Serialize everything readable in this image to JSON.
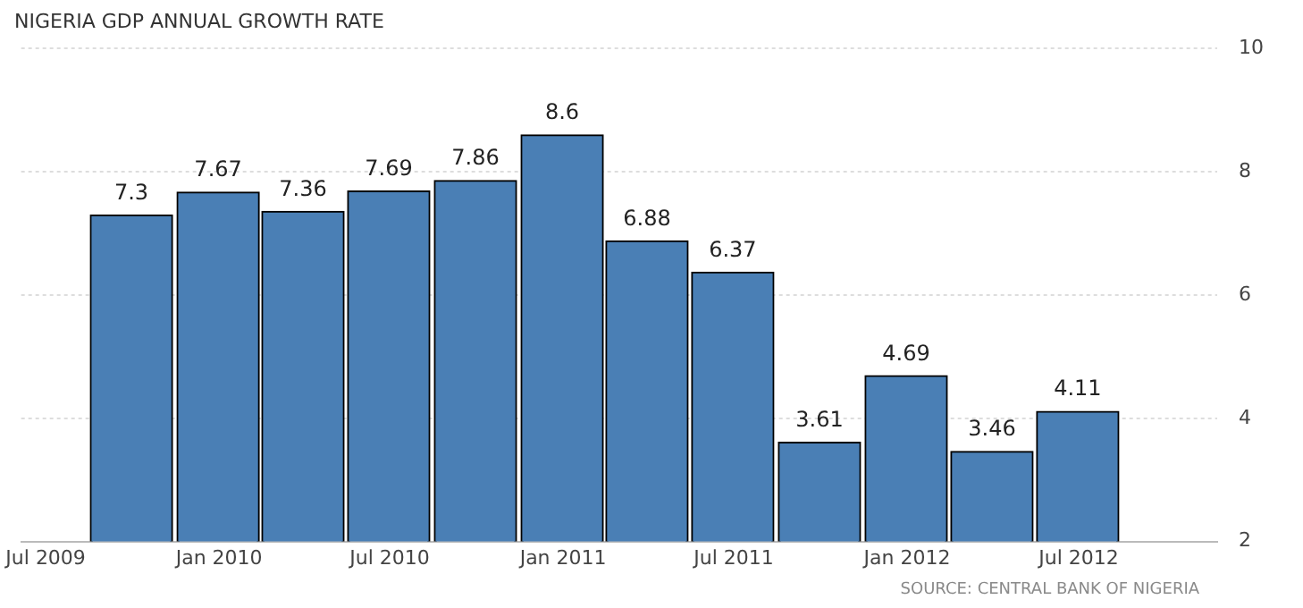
{
  "chart_data": {
    "type": "bar",
    "title": "NIGERIA GDP ANNUAL GROWTH RATE",
    "x": [
      "2009-09-30",
      "2009-12-31",
      "2010-03-31",
      "2010-06-30",
      "2010-09-30",
      "2010-12-31",
      "2011-03-31",
      "2011-06-30",
      "2011-09-30",
      "2011-12-31",
      "2012-03-31",
      "2012-06-30"
    ],
    "values": [
      7.3,
      7.67,
      7.36,
      7.69,
      7.86,
      8.6,
      6.88,
      6.37,
      3.61,
      4.69,
      3.46,
      4.11
    ],
    "color": "#4a7fb5",
    "xlim": [
      "2009-06-05",
      "2012-11-25"
    ],
    "xticks": [
      {
        "value": "2009-07-01",
        "label": "Jul 2009"
      },
      {
        "value": "2010-01-01",
        "label": "Jan 2010"
      },
      {
        "value": "2010-07-01",
        "label": "Jul 2010"
      },
      {
        "value": "2011-01-01",
        "label": "Jan 2011"
      },
      {
        "value": "2011-07-01",
        "label": "Jul 2011"
      },
      {
        "value": "2012-01-01",
        "label": "Jan 2012"
      },
      {
        "value": "2012-07-01",
        "label": "Jul 2012"
      }
    ],
    "ylim": [
      2,
      10
    ],
    "yticks": [
      2,
      4,
      6,
      8,
      10
    ],
    "grid": "y",
    "legend": false,
    "data_labels": true,
    "annotations": [
      "SOURCE: CENTRAL BANK OF NIGERIA"
    ]
  }
}
